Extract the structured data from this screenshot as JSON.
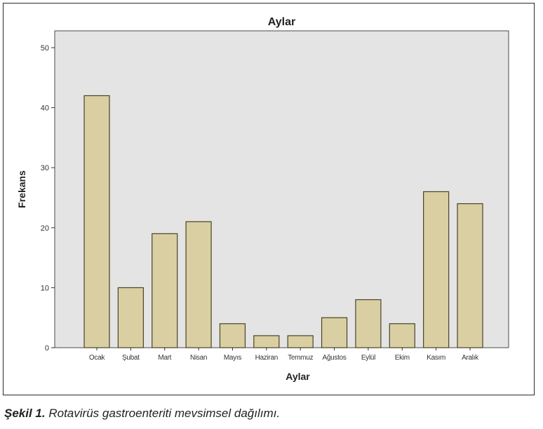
{
  "chart_data": {
    "type": "bar",
    "title": "Aylar",
    "xlabel": "Aylar",
    "ylabel": "Frekans",
    "categories": [
      "Ocak",
      "Şubat",
      "Mart",
      "Nisan",
      "Mayıs",
      "Haziran",
      "Temmuz",
      "Ağustos",
      "Eylül",
      "Ekim",
      "Kasım",
      "Aralık"
    ],
    "values": [
      42,
      10,
      19,
      21,
      4,
      2,
      2,
      5,
      8,
      4,
      26,
      24
    ],
    "ylim": [
      0,
      50
    ],
    "yticks": [
      0,
      10,
      20,
      30,
      40,
      50
    ],
    "grid": false,
    "colors": {
      "bar_fill": "#d9cfa2",
      "bar_stroke": "#4a4228",
      "plot_bg": "#e4e4e4"
    }
  },
  "caption": {
    "label": "Şekil 1.",
    "text": "Rotavirüs gastroenteriti mevsimsel dağılımı."
  }
}
